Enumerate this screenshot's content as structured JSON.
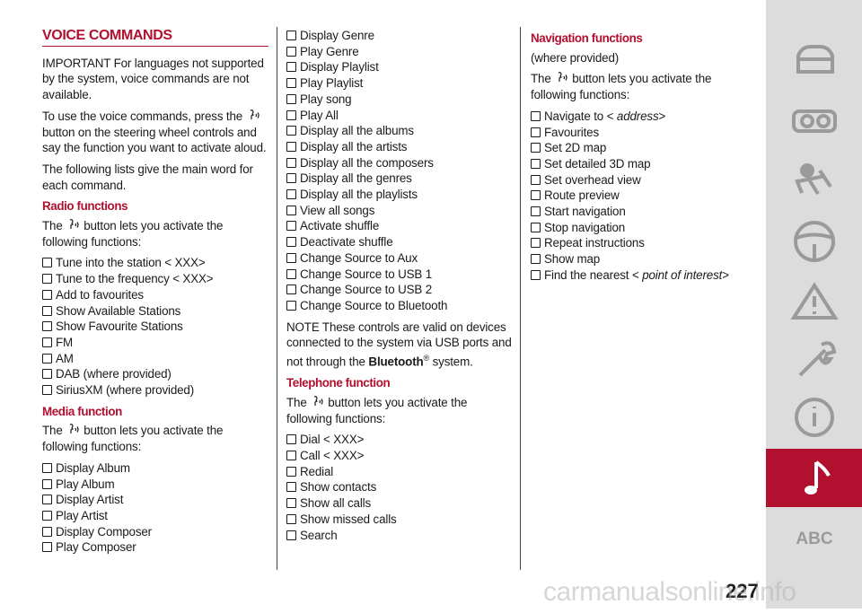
{
  "title": "VOICE COMMANDS",
  "columns": [
    [
      {
        "paragraph": [
          "IMPORTANT For languages not supported by the system, voice commands are not available."
        ]
      },
      {
        "paragraph": [
          "To use the voice commands, press the",
          {
            "icon": "voice"
          },
          "button on the steering wheel controls and say the function you want to activate aloud."
        ]
      },
      {
        "paragraph": [
          "The following lists give the main word for each command."
        ]
      },
      {
        "heading": "Radio functions"
      },
      {
        "paragraph": [
          "The",
          {
            "icon": "voice"
          },
          "button lets you activate the following functions:"
        ]
      },
      {
        "list": [
          "Tune into the station < XXX>",
          "Tune to the frequency < XXX>",
          "Add to favourites",
          "Show Available Stations",
          "Show Favourite Stations",
          "FM",
          "AM",
          "DAB (where provided)",
          "SiriusXM (where provided)"
        ]
      },
      {
        "heading": "Media function"
      },
      {
        "paragraph": [
          "The",
          {
            "icon": "voice"
          },
          "button lets you activate the following functions:"
        ]
      },
      {
        "list": [
          "Display Album",
          "Play Album",
          "Display Artist",
          "Play Artist",
          "Display Composer",
          "Play Composer"
        ]
      }
    ],
    [
      {
        "list": [
          "Display Genre",
          "Play Genre",
          "Display Playlist",
          "Play Playlist",
          "Play song",
          "Play All",
          "Display all the albums",
          "Display all the artists",
          "Display all the composers",
          "Display all the genres",
          "Display all the playlists",
          "View all songs",
          "Activate shuffle",
          "Deactivate shuffle",
          "Change Source to Aux",
          "Change Source to USB 1",
          "Change Source to USB 2",
          "Change Source to Bluetooth"
        ]
      },
      {
        "paragraph": [
          "NOTE These controls are valid on devices connected to the system via USB ports and not through the ",
          {
            "bold": "Bluetooth"
          },
          {
            "sup": "®"
          },
          " system."
        ]
      },
      {
        "heading": "Telephone function"
      },
      {
        "paragraph": [
          "The",
          {
            "icon": "voice"
          },
          "button lets you activate the following functions:"
        ]
      },
      {
        "list": [
          "Dial < XXX>",
          "Call < XXX>",
          "Redial",
          "Show contacts",
          "Show all calls",
          "Show missed calls",
          "Search"
        ]
      }
    ],
    [
      {
        "heading": "Navigation functions"
      },
      {
        "paragraph": [
          "(where provided)"
        ]
      },
      {
        "paragraph": [
          "The",
          {
            "icon": "voice"
          },
          "button lets you activate the following functions:"
        ]
      },
      {
        "list": [
          [
            "Navigate to < ",
            {
              "italic": "address"
            },
            ">"
          ],
          "Favourites",
          "Set 2D map",
          "Set detailed 3D map",
          "Set overhead view",
          "Route preview",
          "Start navigation",
          "Stop navigation",
          "Repeat instructions",
          "Show map",
          [
            "Find the nearest < ",
            {
              "italic": "point of interest"
            },
            ">"
          ]
        ]
      }
    ]
  ],
  "sidebar": {
    "abc": "ABC"
  },
  "page_number": "227",
  "watermark": "carmanualsonline.info"
}
